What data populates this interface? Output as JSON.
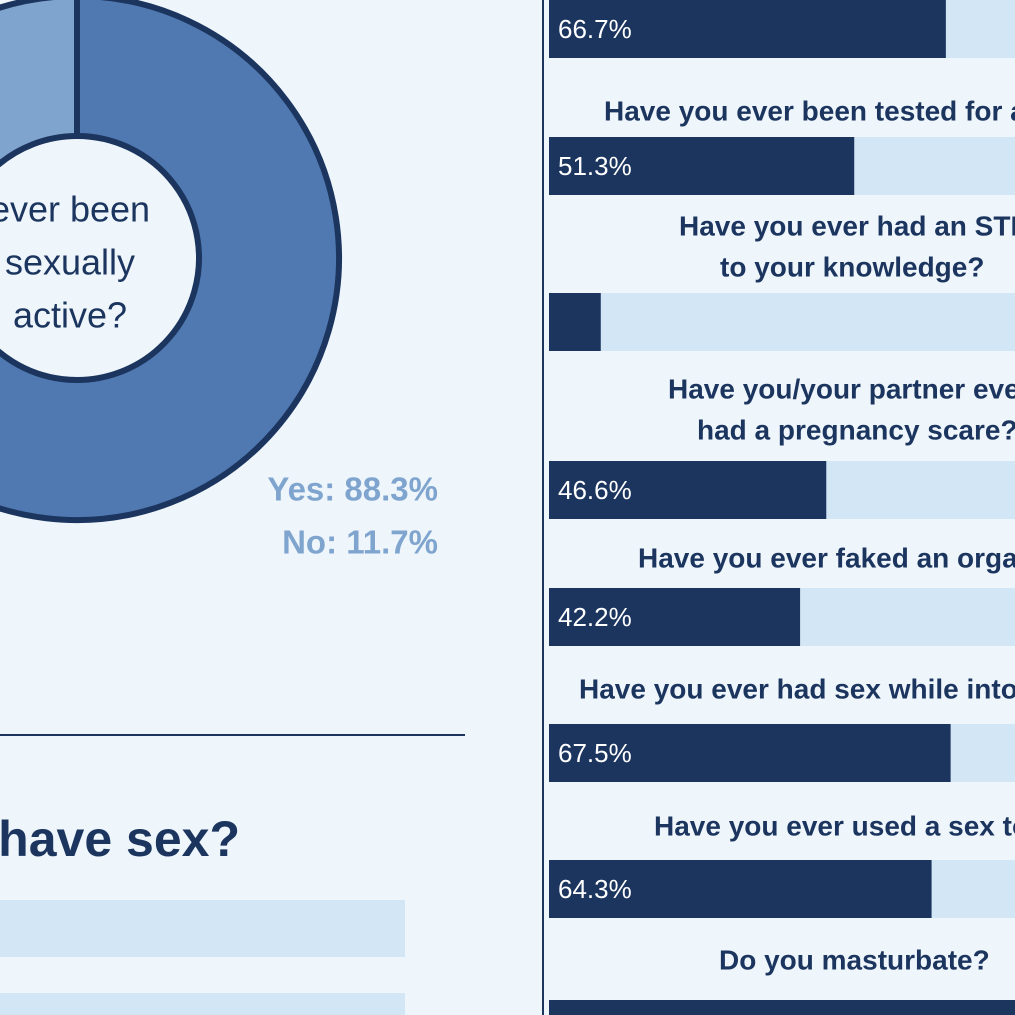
{
  "chart_data": [
    {
      "type": "donut",
      "title": [
        "ever been",
        "sexually",
        "active?"
      ],
      "categories": [
        "Yes",
        "No"
      ],
      "values": [
        88.3,
        11.7
      ],
      "value_labels": [
        "Yes: 88.3%",
        "No: 11.7%"
      ],
      "colors": [
        "#5079b1",
        "#7fa5cf"
      ]
    },
    {
      "type": "bar",
      "orientation": "horizontal",
      "categories": [
        null,
        [
          "Have you ever been tested for a"
        ],
        [
          "Have you ever had an STI,",
          "to your knowledge?"
        ],
        [
          "Have you/your partner eve",
          "had a pregnancy scare?"
        ],
        [
          "Have you ever faked an orgas"
        ],
        [
          "Have you ever had sex while intox"
        ],
        [
          "Have you ever used a sex to"
        ],
        [
          "Do you masturbate?"
        ]
      ],
      "values": [
        66.7,
        51.3,
        8.7,
        46.6,
        42.2,
        67.5,
        64.3,
        80
      ],
      "value_labels": [
        "66.7%",
        "51.3%",
        null,
        "46.6%",
        "42.2%",
        "67.5%",
        "64.3%",
        null
      ],
      "color": "#1b355f",
      "track_color": "#d3e6f6",
      "xlim": [
        0,
        100
      ]
    }
  ],
  "section_heading": "u have sex?"
}
